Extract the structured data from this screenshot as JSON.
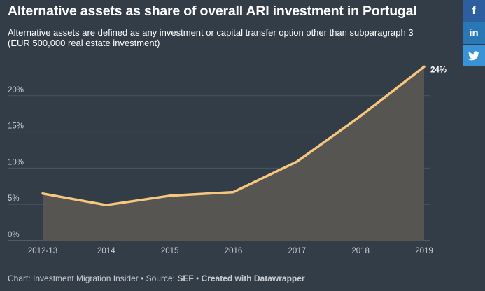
{
  "header": {
    "title": "Alternative assets as share of overall ARI investment in Portugal",
    "subtitle": "Alternative assets are defined as any investment or capital transfer option other than subparagraph 3 (EUR 500,000 real estate investment)"
  },
  "footer": {
    "chart_prefix": "Chart: Investment Migration Insider • Source: ",
    "source": "SEF",
    "separator": " • ",
    "created_with": "Created with Datawrapper"
  },
  "share": {
    "facebook_glyph": "f",
    "linkedin_glyph": "in",
    "twitter_glyph": "🐦"
  },
  "colors": {
    "background": "#333d48",
    "line": "#f7c77d",
    "area": "#5a5652",
    "grid": "#4b5560"
  },
  "chart_data": {
    "type": "area",
    "x": [
      "2012-13",
      "2014",
      "2015",
      "2016",
      "2017",
      "2018",
      "2019"
    ],
    "values": [
      6.5,
      4.9,
      6.2,
      6.7,
      10.9,
      17.2,
      24
    ],
    "ylim": [
      0,
      25
    ],
    "y_ticks": [
      0,
      5,
      10,
      15,
      20
    ],
    "y_tick_labels": [
      "0%",
      "5%",
      "10%",
      "15%",
      "20%"
    ],
    "end_label": "24%",
    "grid": true
  }
}
